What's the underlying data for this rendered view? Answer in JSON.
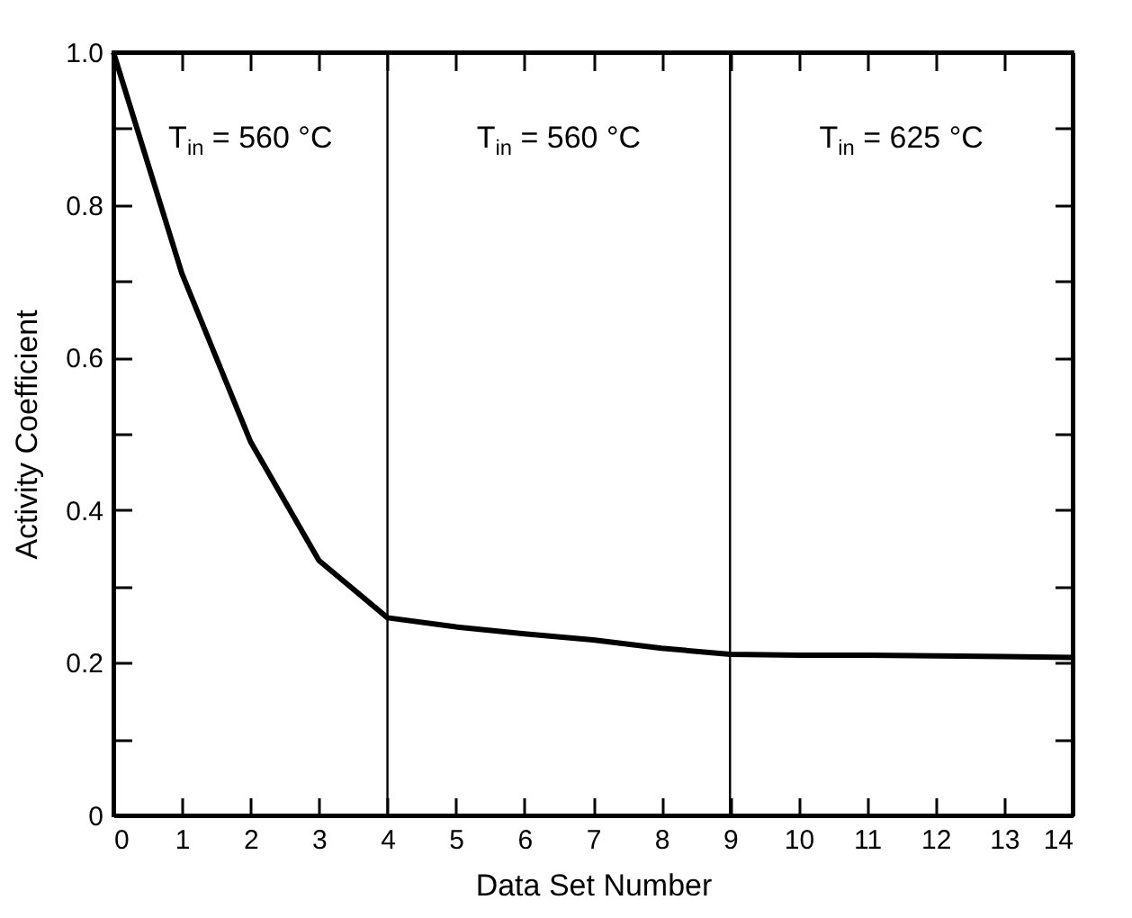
{
  "chart_data": {
    "type": "line",
    "xlabel": "Data Set Number",
    "ylabel": "Activity Coefficient",
    "x": [
      0,
      1,
      2,
      3,
      4,
      5,
      6,
      7,
      8,
      9,
      10,
      11,
      12,
      13,
      14
    ],
    "series": [
      {
        "color": "#000000",
        "values": [
          1.0,
          0.71,
          0.49,
          0.334,
          0.259,
          0.247,
          0.238,
          0.23,
          0.219,
          0.211,
          0.21,
          0.21,
          0.209,
          0.208,
          0.207
        ]
      }
    ],
    "xlim": [
      0,
      14
    ],
    "xticks": [
      0,
      1,
      2,
      3,
      4,
      5,
      6,
      7,
      8,
      9,
      10,
      11,
      12,
      13,
      14
    ],
    "ylim": [
      0,
      1
    ],
    "yticks": [
      0,
      {
        "value": 0.1,
        "label": null
      },
      0.2,
      {
        "value": 0.3,
        "label": null
      },
      0.4,
      {
        "value": 0.5,
        "label": null
      },
      0.6,
      {
        "value": 0.7,
        "label": null
      },
      0.8,
      {
        "value": 0.9,
        "label": null
      },
      {
        "value": 1,
        "label": "1.0"
      }
    ],
    "ref_lines": [
      {
        "axis": "x",
        "value": 4,
        "color": "#000000"
      },
      {
        "axis": "x",
        "value": 9,
        "color": "#000000"
      }
    ],
    "annotations": [
      "T$_{in}$ = 560 °C",
      "T$_{in}$ = 560 °C",
      "T$_{in}$ = 625 °C"
    ],
    "grid": false,
    "marker": "none",
    "line_style": "solid"
  }
}
